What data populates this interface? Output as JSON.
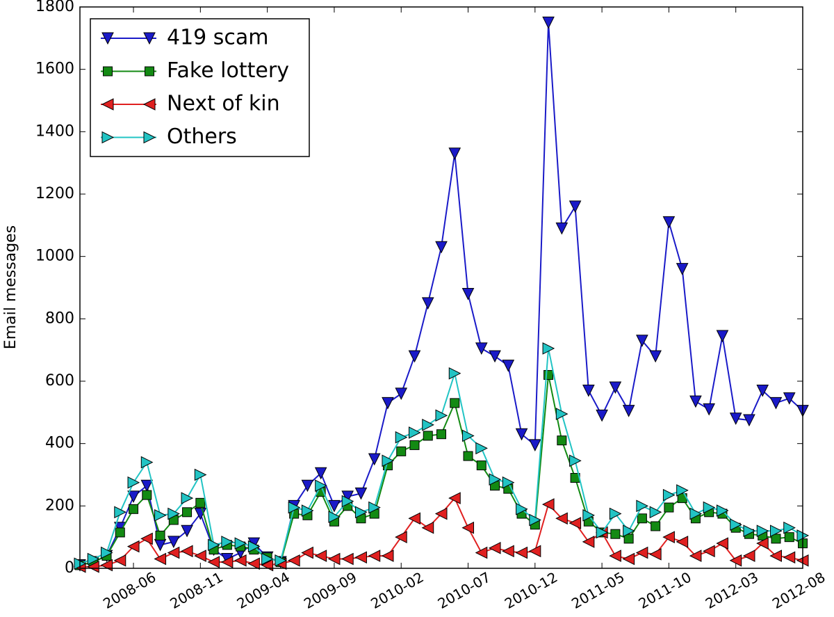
{
  "chart_data": {
    "type": "line",
    "y_label": "Email messages",
    "categories": [
      null,
      null,
      null,
      null,
      "2008-06",
      null,
      null,
      null,
      null,
      "2008-11",
      null,
      null,
      null,
      null,
      "2009-04",
      null,
      null,
      null,
      null,
      "2009-09",
      null,
      null,
      null,
      null,
      "2010-02",
      null,
      null,
      null,
      null,
      "2010-07",
      null,
      null,
      null,
      null,
      "2010-12",
      null,
      null,
      null,
      null,
      "2011-05",
      null,
      null,
      null,
      null,
      "2011-10",
      null,
      null,
      null,
      null,
      "2012-03",
      null,
      null,
      null,
      null,
      "2012-08"
    ],
    "ylim": [
      0,
      1800
    ],
    "yticks": [
      0,
      200,
      400,
      600,
      800,
      1000,
      1200,
      1400,
      1600,
      1800
    ],
    "legend": "upper left",
    "series": [
      {
        "name": "419 scam",
        "color": "#1a1ac8",
        "marker": "v",
        "values": [
          10,
          20,
          40,
          130,
          230,
          265,
          75,
          85,
          120,
          175,
          60,
          30,
          50,
          80,
          35,
          20,
          200,
          265,
          305,
          200,
          230,
          240,
          350,
          530,
          560,
          680,
          850,
          1030,
          1330,
          880,
          705,
          680,
          650,
          430,
          395,
          1750,
          1090,
          1160,
          570,
          490,
          580,
          505,
          730,
          680,
          1110,
          960,
          535,
          510,
          745,
          480,
          475,
          570,
          530,
          545,
          505
        ]
      },
      {
        "name": "Fake lottery",
        "color": "#138a13",
        "marker": "s",
        "values": [
          10,
          20,
          40,
          115,
          190,
          235,
          105,
          155,
          180,
          210,
          60,
          75,
          70,
          60,
          35,
          20,
          175,
          170,
          245,
          150,
          200,
          160,
          175,
          330,
          375,
          395,
          425,
          430,
          530,
          360,
          330,
          265,
          255,
          175,
          140,
          620,
          410,
          290,
          150,
          115,
          110,
          95,
          160,
          135,
          195,
          225,
          160,
          180,
          175,
          130,
          110,
          105,
          95,
          100,
          80
        ]
      },
      {
        "name": "Next of kin",
        "color": "#e02020",
        "marker": "<",
        "values": [
          5,
          5,
          10,
          25,
          70,
          95,
          30,
          50,
          55,
          40,
          20,
          20,
          25,
          15,
          10,
          15,
          25,
          50,
          40,
          30,
          30,
          35,
          40,
          40,
          100,
          160,
          130,
          175,
          225,
          130,
          50,
          65,
          55,
          50,
          55,
          205,
          160,
          145,
          85,
          115,
          40,
          30,
          50,
          45,
          100,
          85,
          40,
          55,
          80,
          25,
          40,
          80,
          40,
          35,
          25
        ]
      },
      {
        "name": "Others",
        "color": "#22c4c4",
        "marker": ">",
        "values": [
          15,
          30,
          50,
          180,
          275,
          340,
          170,
          175,
          225,
          300,
          75,
          85,
          80,
          70,
          30,
          25,
          195,
          185,
          265,
          165,
          215,
          180,
          195,
          345,
          420,
          435,
          460,
          490,
          625,
          425,
          385,
          285,
          275,
          190,
          155,
          705,
          495,
          345,
          170,
          115,
          175,
          120,
          200,
          180,
          235,
          250,
          175,
          195,
          185,
          140,
          120,
          120,
          120,
          130,
          105
        ]
      }
    ]
  }
}
